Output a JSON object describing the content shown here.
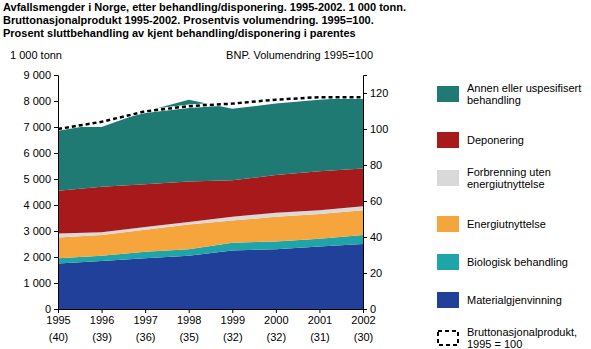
{
  "chart_data": {
    "type": "area",
    "stacked": true,
    "grid": false,
    "legend": "right",
    "title": [
      "Avfallsmengder i Norge, etter behandling/disponering. 1995-2002. 1 000 tonn.",
      "Bruttonasjonalprodukt 1995-2002. Prosentvis volumendring. 1995=100.",
      "Prosent sluttbehandling av kjent behandling/disponering i parentes"
    ],
    "y_label": "1 000 tonn",
    "y2_label": "BNP. Volumendring 1995=100",
    "categories": [
      "1995",
      "1996",
      "1997",
      "1998",
      "1999",
      "2000",
      "2001",
      "2002"
    ],
    "category_notes": [
      "(40)",
      "(39)",
      "(36)",
      "(35)",
      "(32)",
      "(32)",
      "(31)",
      "(30)"
    ],
    "ylim": [
      0,
      9000
    ],
    "yticks": [
      0,
      {
        "value": 1000,
        "label": "1 000"
      },
      {
        "value": 2000,
        "label": "2 000"
      },
      {
        "value": 3000,
        "label": "3 000"
      },
      {
        "value": 4000,
        "label": "4 000"
      },
      {
        "value": 5000,
        "label": "5 000"
      },
      {
        "value": 6000,
        "label": "6 000"
      },
      {
        "value": 7000,
        "label": "7 000"
      },
      {
        "value": 8000,
        "label": "8 000"
      },
      {
        "value": 9000,
        "label": "9 000"
      }
    ],
    "y2lim": [
      0,
      130
    ],
    "y2ticks": [
      0,
      20,
      40,
      60,
      80,
      100,
      120
    ],
    "series": [
      {
        "name": "Materialgjenvinning",
        "color": "#20409a",
        "values": [
          1750,
          1850,
          1950,
          2050,
          2250,
          2300,
          2400,
          2500
        ]
      },
      {
        "name": "Biologisk behandling",
        "color": "#1fa5a8",
        "values": [
          200,
          200,
          250,
          250,
          300,
          300,
          300,
          350
        ]
      },
      {
        "name": "Energiutnyttelse",
        "color": "#f5a53c",
        "values": [
          800,
          800,
          850,
          950,
          850,
          950,
          950,
          950
        ]
      },
      {
        "name": "Forbrenning uten energiutnyttelse",
        "color": "#d9d9d9",
        "values": [
          150,
          100,
          100,
          100,
          150,
          150,
          150,
          150
        ]
      },
      {
        "name": "Deponering",
        "color": "#a8191c",
        "values": [
          1650,
          1750,
          1650,
          1550,
          1400,
          1450,
          1500,
          1450
        ]
      },
      {
        "name": "Annen eller uspesifisert behandling",
        "color": "#1e7a72",
        "values": [
          2450,
          2300,
          2800,
          3150,
          2750,
          2750,
          2750,
          2750
        ]
      },
      {
        "name": "Bruttonasjonalprodukt, 1995 = 100",
        "color": "#000000",
        "type": "line",
        "line_style": "dashed",
        "axis": "y2",
        "values": [
          100,
          104,
          109.8,
          112.7,
          114.1,
          116.3,
          117.7,
          117.7
        ]
      }
    ]
  }
}
